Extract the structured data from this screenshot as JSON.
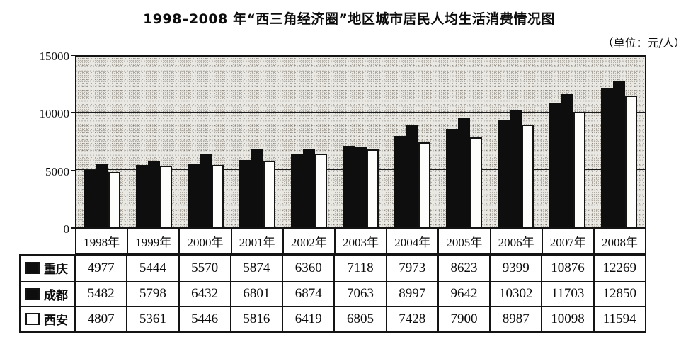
{
  "title": "1998–2008 年“西三角经济圈”地区城市居民人均生活消费情况图",
  "unit_label": "（单位：元/人）",
  "chart_data": {
    "type": "bar",
    "title": "1998–2008 年“西三角经济圈”地区城市居民人均生活消费情况图",
    "unit": "元/人",
    "categories": [
      "1998年",
      "1999年",
      "2000年",
      "2001年",
      "2002年",
      "2003年",
      "2004年",
      "2005年",
      "2006年",
      "2007年",
      "2008年"
    ],
    "series": [
      {
        "name": "重庆",
        "color": "#0e0e0e",
        "style": "solid-black",
        "values": [
          4977,
          5444,
          5570,
          5874,
          6360,
          7118,
          7973,
          8623,
          9399,
          10876,
          12269
        ]
      },
      {
        "name": "成都",
        "color": "#0e0e0e",
        "style": "solid-black",
        "values": [
          5482,
          5798,
          6432,
          6801,
          6874,
          7063,
          8997,
          9642,
          10302,
          11703,
          12850
        ]
      },
      {
        "name": "西安",
        "color": "#ffffff",
        "style": "white-outlined",
        "values": [
          4807,
          5361,
          5446,
          5816,
          6419,
          6805,
          7428,
          7900,
          8987,
          10098,
          11594
        ]
      }
    ],
    "xlabel": "",
    "ylabel": "",
    "ylim": [
      0,
      15000
    ],
    "y_ticks": [
      0,
      5000,
      10000,
      15000
    ],
    "gridlines": [
      5000,
      10000
    ],
    "grid": true,
    "legend_position": "table-left",
    "plot_background": "#e9e8e3",
    "table_shown": true
  }
}
